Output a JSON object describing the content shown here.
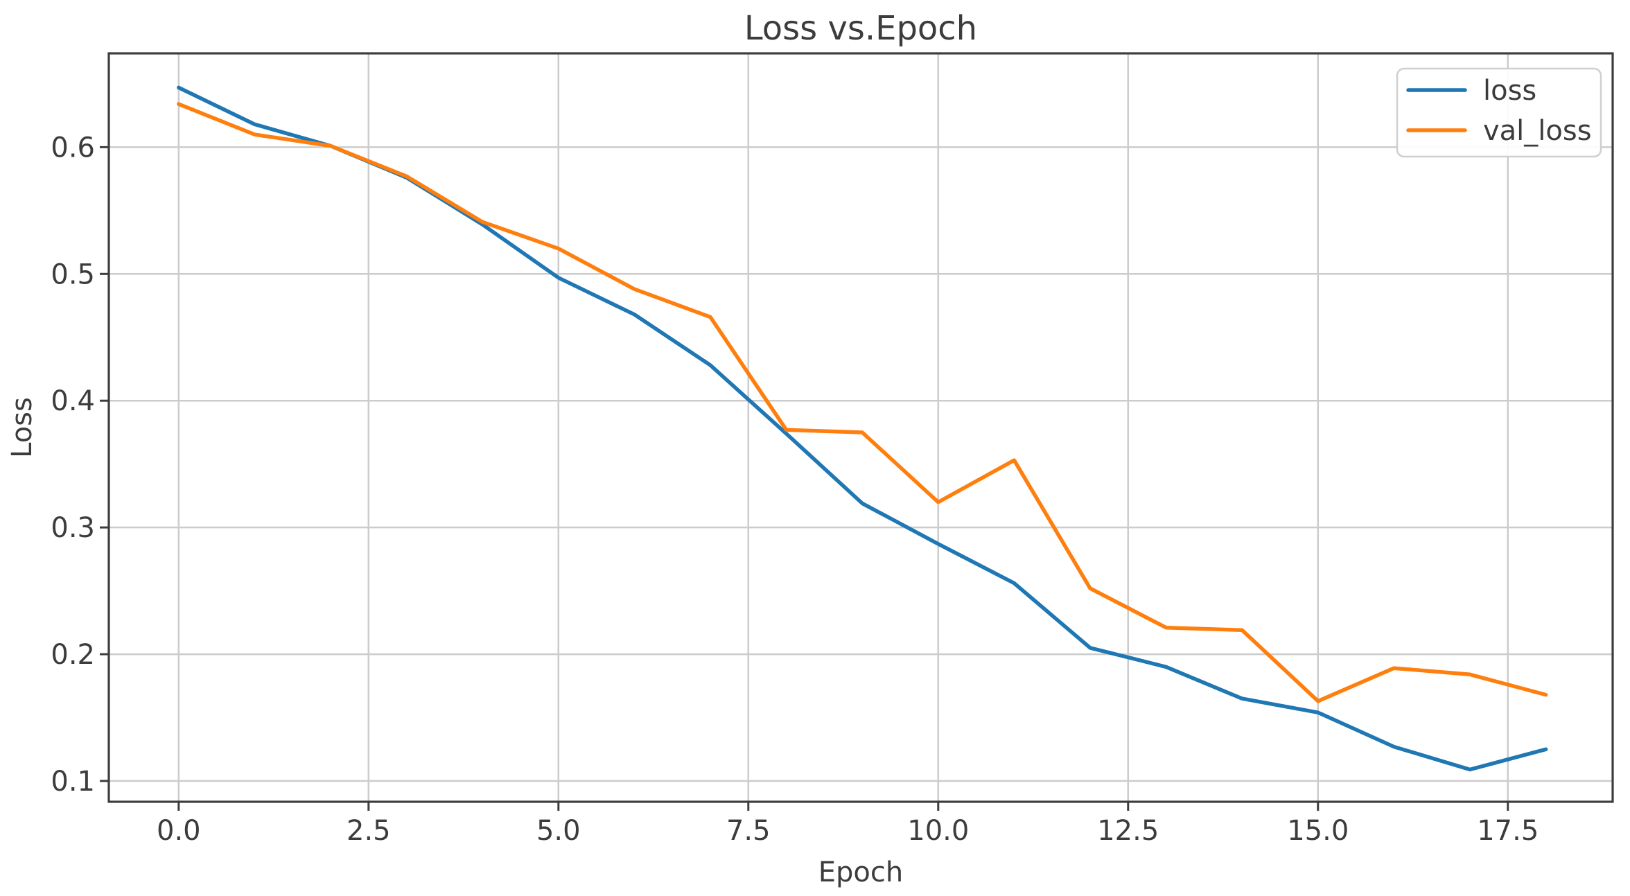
{
  "chart_data": {
    "type": "line",
    "title": "Loss vs.Epoch",
    "xlabel": "Epoch",
    "ylabel": "Loss",
    "x": [
      0,
      1,
      2,
      3,
      4,
      5,
      6,
      7,
      8,
      9,
      10,
      11,
      12,
      13,
      14,
      15,
      16,
      17,
      18
    ],
    "series": [
      {
        "name": "loss",
        "color": "#1f77b4",
        "values": [
          0.647,
          0.618,
          0.601,
          0.576,
          0.539,
          0.497,
          0.468,
          0.428,
          0.374,
          0.319,
          0.287,
          0.256,
          0.205,
          0.19,
          0.165,
          0.154,
          0.127,
          0.109,
          0.125
        ]
      },
      {
        "name": "val_loss",
        "color": "#ff7f0e",
        "values": [
          0.634,
          0.61,
          0.601,
          0.577,
          0.541,
          0.52,
          0.488,
          0.466,
          0.377,
          0.375,
          0.32,
          0.353,
          0.252,
          0.221,
          0.219,
          0.163,
          0.189,
          0.184,
          0.168
        ]
      }
    ],
    "x_ticks": [
      {
        "value": 0,
        "label": "0.0"
      },
      {
        "value": 2.5,
        "label": "2.5"
      },
      {
        "value": 5,
        "label": "5.0"
      },
      {
        "value": 7.5,
        "label": "7.5"
      },
      {
        "value": 10,
        "label": "10.0"
      },
      {
        "value": 12.5,
        "label": "12.5"
      },
      {
        "value": 15,
        "label": "15.0"
      },
      {
        "value": 17.5,
        "label": "17.5"
      }
    ],
    "y_ticks": [
      {
        "value": 0.1,
        "label": "0.1"
      },
      {
        "value": 0.2,
        "label": "0.2"
      },
      {
        "value": 0.3,
        "label": "0.3"
      },
      {
        "value": 0.4,
        "label": "0.4"
      },
      {
        "value": 0.5,
        "label": "0.5"
      },
      {
        "value": 0.6,
        "label": "0.6"
      }
    ],
    "xlim": [
      -0.92,
      18.88
    ],
    "ylim": [
      0.0836,
      0.674
    ],
    "grid": true,
    "legend": {
      "position": "upper-right",
      "entries": [
        "loss",
        "val_loss"
      ]
    },
    "colors": {
      "grid": "#cccccc",
      "spine": "#3d3d3d",
      "text": "#3c3c3c",
      "legend_border": "#cfcfcf",
      "background": "#ffffff"
    }
  }
}
